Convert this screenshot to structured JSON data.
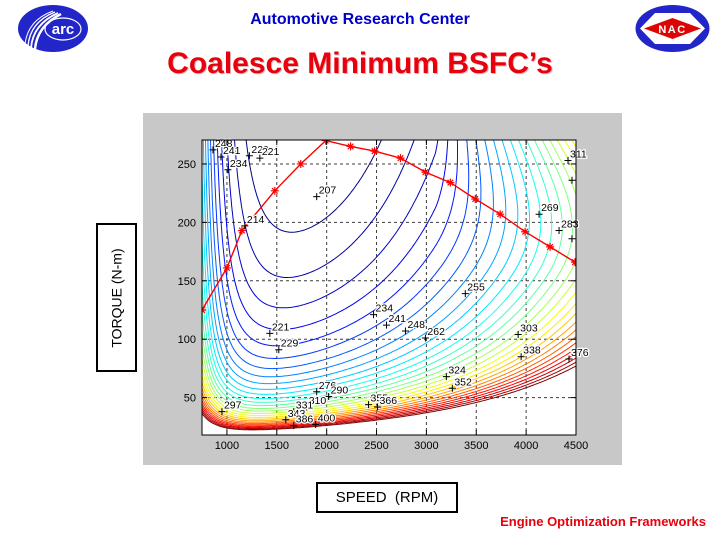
{
  "slide": {
    "header_title": "Automotive Research Center",
    "title": "Coalesce Minimum BSFC’s",
    "footer": "Engine Optimization Frameworks"
  },
  "logos": {
    "arc_text": "arc",
    "nac_text": "NAC"
  },
  "axis_boxes": {
    "y_label": "TORQUE (N-m)",
    "x_label": "SPEED  (RPM)"
  },
  "colors": {
    "header_blue": "#0000cc",
    "title_red": "#e8000d",
    "footer_red": "#e8000d",
    "figure_bg": "#c8c8c8",
    "plot_bg": "#ffffff",
    "logo_blue": "#2226c8",
    "logo_red": "#dd0404",
    "trajectory_red": "#ff0000",
    "grid_color": "#3c3c3c"
  },
  "chart_data": {
    "type": "contour",
    "title": "",
    "xlabel": "SPEED (RPM)",
    "ylabel": "TORQUE (N-m)",
    "xlim": [
      750,
      4500
    ],
    "ylim": [
      18,
      270.5
    ],
    "x_ticks": [
      1000,
      1500,
      2000,
      2500,
      3000,
      3500,
      4000,
      4500
    ],
    "y_ticks": [
      50,
      100,
      150,
      200,
      250
    ],
    "grid": "dashed",
    "legend_position": "none",
    "colormap": "jet",
    "contour_levels": {
      "start": 207,
      "step": 7,
      "end": 403
    },
    "contour_labels": [
      {
        "value": 248,
        "rpm": 860,
        "torque": 262
      },
      {
        "value": 241,
        "rpm": 940,
        "torque": 256
      },
      {
        "value": 234,
        "rpm": 1010,
        "torque": 245
      },
      {
        "value": 229,
        "rpm": 1225,
        "torque": 257
      },
      {
        "value": 221,
        "rpm": 1330,
        "torque": 255
      },
      {
        "value": 207,
        "rpm": 1900,
        "torque": 222
      },
      {
        "value": 214,
        "rpm": 1180,
        "torque": 197
      },
      {
        "value": 269,
        "rpm": 4130,
        "torque": 207
      },
      {
        "value": 283,
        "rpm": 4330,
        "torque": 193
      },
      {
        "value": 311,
        "rpm": 4420,
        "torque": 253
      },
      {
        "value": 255,
        "rpm": 3390,
        "torque": 139
      },
      {
        "value": 234,
        "rpm": 2470,
        "torque": 121
      },
      {
        "value": 241,
        "rpm": 2600,
        "torque": 112
      },
      {
        "value": 248,
        "rpm": 2790,
        "torque": 107
      },
      {
        "value": 262,
        "rpm": 2990,
        "torque": 101
      },
      {
        "value": 303,
        "rpm": 3920,
        "torque": 104
      },
      {
        "value": 221,
        "rpm": 1430,
        "torque": 105
      },
      {
        "value": 229,
        "rpm": 1520,
        "torque": 91
      },
      {
        "value": 338,
        "rpm": 3950,
        "torque": 85
      },
      {
        "value": 297,
        "rpm": 950,
        "torque": 38
      },
      {
        "value": 276,
        "rpm": 1900,
        "torque": 55
      },
      {
        "value": 290,
        "rpm": 2020,
        "torque": 51
      },
      {
        "value": 310,
        "rpm": 1800,
        "torque": 42
      },
      {
        "value": 331,
        "rpm": 1670,
        "torque": 38
      },
      {
        "value": 343,
        "rpm": 1590,
        "torque": 31
      },
      {
        "value": 386,
        "rpm": 1670,
        "torque": 26
      },
      {
        "value": 400,
        "rpm": 1890,
        "torque": 27
      },
      {
        "value": 355,
        "rpm": 2420,
        "torque": 44
      },
      {
        "value": 366,
        "rpm": 2510,
        "torque": 42
      },
      {
        "value": 324,
        "rpm": 3200,
        "torque": 68
      },
      {
        "value": 352,
        "rpm": 3260,
        "torque": 58
      },
      {
        "value": 376,
        "rpm": 4430,
        "torque": 83
      }
    ],
    "edge_plus_marks": [
      {
        "rpm": 4460,
        "torque": 236
      },
      {
        "rpm": 4460,
        "torque": 186
      }
    ],
    "min_bsfc_trajectory": {
      "marker": "*",
      "color": "#ff0000",
      "points_rpm_torque": [
        [
          750,
          125
        ],
        [
          1000,
          161
        ],
        [
          1150,
          193
        ],
        [
          1480,
          227
        ],
        [
          1740,
          250
        ],
        [
          1990,
          270
        ],
        [
          2240,
          265
        ],
        [
          2480,
          261
        ],
        [
          2740,
          255
        ],
        [
          2990,
          243
        ],
        [
          3240,
          234
        ],
        [
          3490,
          220
        ],
        [
          3740,
          207
        ],
        [
          3990,
          192
        ],
        [
          4240,
          179
        ],
        [
          4490,
          166
        ]
      ]
    }
  }
}
